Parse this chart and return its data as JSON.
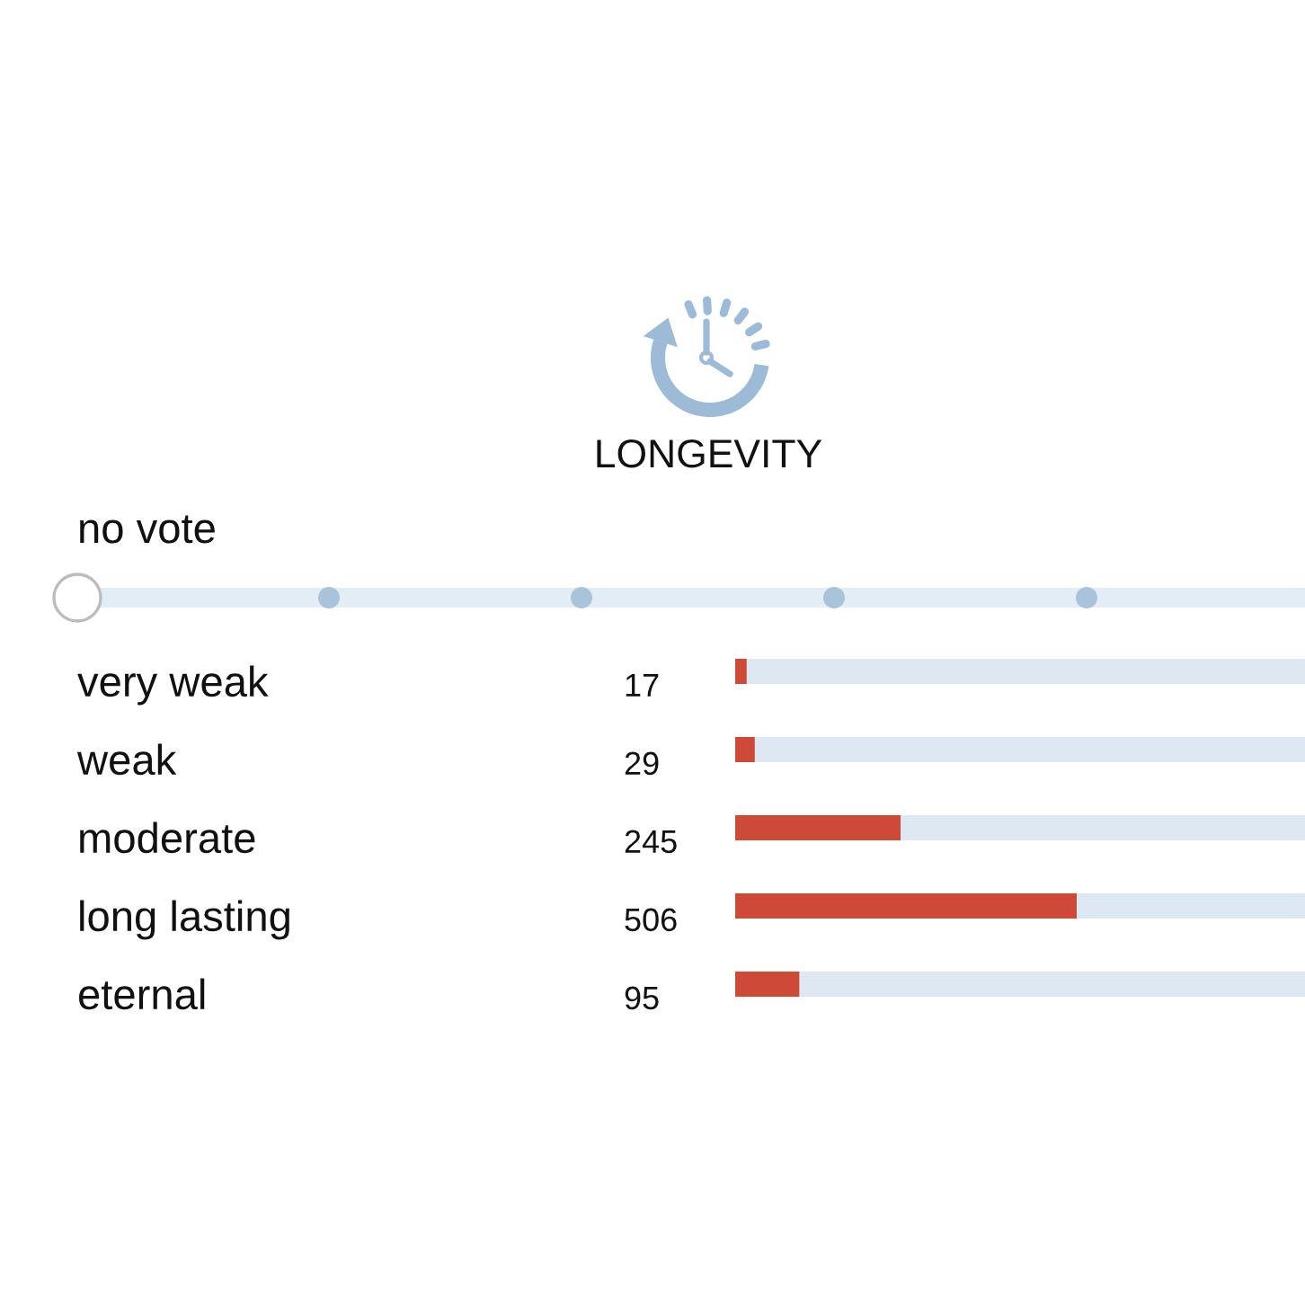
{
  "chart_data": {
    "type": "bar",
    "orientation": "horizontal",
    "title": "LONGEVITY",
    "categories": [
      "very weak",
      "weak",
      "moderate",
      "long lasting",
      "eternal"
    ],
    "values": [
      17,
      29,
      245,
      506,
      95
    ],
    "color": "#cc4a36",
    "data_labels": true,
    "annotations": [
      "no vote"
    ]
  }
}
